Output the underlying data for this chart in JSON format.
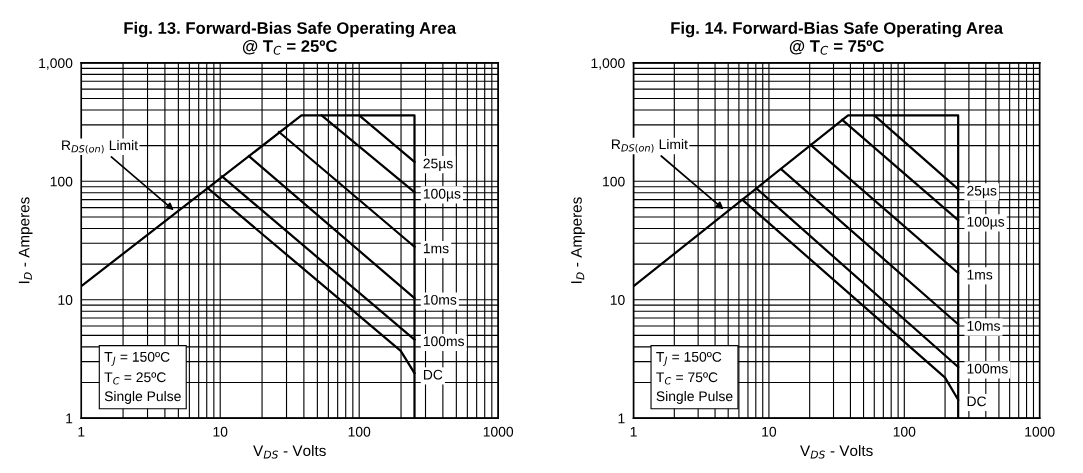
{
  "chart_data": [
    {
      "type": "line",
      "title": "Fig. 13. Forward-Bias Safe Operating Area\n@ T$_{C}$ = 25ºC",
      "xlabel": "V$_{DS}$ - Volts",
      "ylabel": "I$_{D}$ - Amperes",
      "log": "xy",
      "grid": true,
      "marker": "none",
      "line_style": "solid",
      "xlim": [
        1,
        1000
      ],
      "ylim": [
        1,
        1000
      ],
      "xticks": [
        1,
        10,
        100,
        1000
      ],
      "yticks": [
        1,
        10,
        100,
        {
          "value": 1000,
          "label": "1,000"
        }
      ],
      "series": [
        {
          "color": "#000000",
          "x": [
            1,
            38.4,
            250,
            250
          ],
          "values": [
            13,
            360,
            360,
            1
          ]
        },
        {
          "name": "25µs",
          "color": "#000000",
          "x": [
            100,
            250
          ],
          "values": [
            360,
            146
          ]
        },
        {
          "name": "100µs",
          "color": "#000000",
          "x": [
            53.6,
            250
          ],
          "values": [
            360,
            81
          ]
        },
        {
          "name": "1ms",
          "color": "#000000",
          "x": [
            26.5,
            250
          ],
          "values": [
            261,
            28
          ]
        },
        {
          "name": "10ms",
          "color": "#000000",
          "x": [
            16.1,
            250
          ],
          "values": [
            163,
            10.3
          ]
        },
        {
          "name": "100ms",
          "color": "#000000",
          "x": [
            10.3,
            250
          ],
          "values": [
            110,
            4.6
          ]
        },
        {
          "name": "DC",
          "color": "#000000",
          "x": [
            8.1,
            199,
            250
          ],
          "values": [
            88,
            3.7,
            2.4
          ]
        }
      ],
      "annotations": [
        {
          "text": "R$_{DS(on)}$ Limit",
          "x": 4.8,
          "y": 55
        },
        "T$_{J}$ = 150ºC\nT$_{C}$ = 25ºC\nSingle Pulse"
      ]
    },
    {
      "type": "line",
      "title": "Fig. 14. Forward-Bias Safe Operating Area\n@ T$_{C}$ = 75ºC",
      "xlabel": "V$_{DS}$ - Volts",
      "ylabel": "I$_{D}$ - Amperes",
      "log": "xy",
      "grid": true,
      "marker": "none",
      "line_style": "solid",
      "xlim": [
        1,
        1000
      ],
      "ylim": [
        1,
        1000
      ],
      "xticks": [
        1,
        10,
        100,
        1000
      ],
      "yticks": [
        1,
        10,
        100,
        {
          "value": 1000,
          "label": "1,000"
        }
      ],
      "series": [
        {
          "color": "#000000",
          "x": [
            1,
            38.4,
            250,
            250
          ],
          "values": [
            13,
            360,
            360,
            1
          ]
        },
        {
          "name": "25µs",
          "color": "#000000",
          "x": [
            60,
            250
          ],
          "values": [
            360,
            86
          ]
        },
        {
          "name": "100µs",
          "color": "#000000",
          "x": [
            34.8,
            250
          ],
          "values": [
            330,
            47
          ]
        },
        {
          "name": "1ms",
          "color": "#000000",
          "x": [
            20.3,
            250
          ],
          "values": [
            203,
            16.8
          ]
        },
        {
          "name": "10ms",
          "color": "#000000",
          "x": [
            12.3,
            250
          ],
          "values": [
            127,
            6.2
          ]
        },
        {
          "name": "100ms",
          "color": "#000000",
          "x": [
            8.05,
            250
          ],
          "values": [
            87.5,
            2.7
          ]
        },
        {
          "name": "DC",
          "color": "#000000",
          "x": [
            6.35,
            200,
            250
          ],
          "values": [
            70,
            2.2,
            1.43
          ]
        }
      ],
      "annotations": [
        {
          "text": "R$_{DS(on)}$ Limit",
          "x": 4.8,
          "y": 56
        },
        "T$_{J}$ = 150ºC\nT$_{C}$ = 75ºC\nSingle Pulse"
      ]
    }
  ]
}
